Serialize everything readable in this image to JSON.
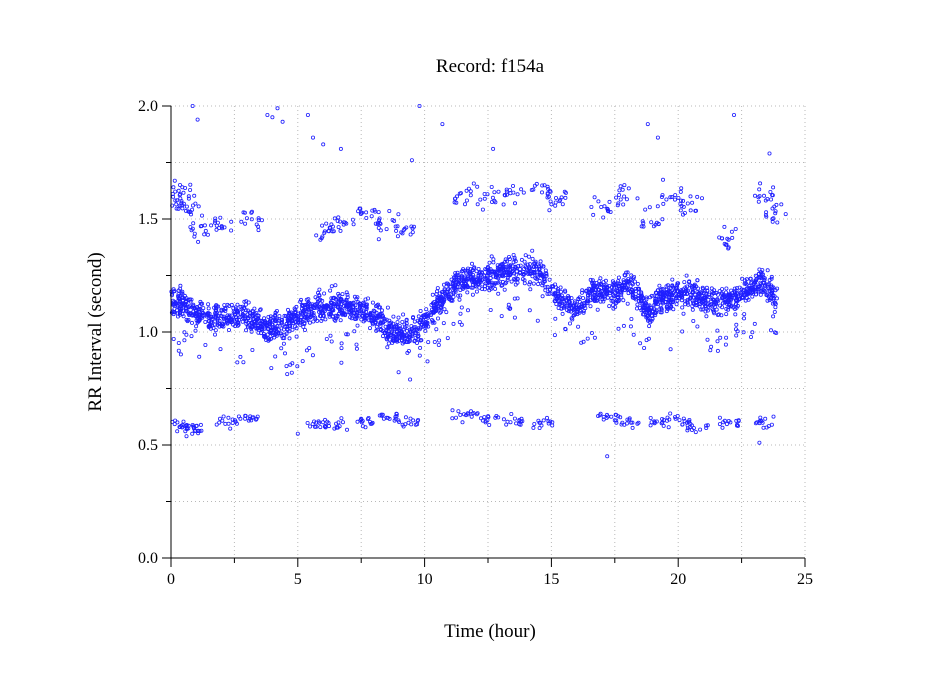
{
  "chart_data": {
    "type": "scatter",
    "title": "Record:  f154a",
    "xlabel": "Time (hour)",
    "ylabel": "RR Interval (second)",
    "xlim": [
      0,
      25
    ],
    "ylim": [
      0.0,
      2.0
    ],
    "xticks": [
      "0",
      "5",
      "10",
      "15",
      "20",
      "25"
    ],
    "yticks": [
      "0.0",
      "0.5",
      "1.0",
      "1.5",
      "2.0"
    ],
    "grid": true,
    "marker": "open-circle",
    "color": "#1f1fff",
    "series": [
      {
        "name": "",
        "baseline_trend": [
          {
            "x": 0.0,
            "y": 1.15
          },
          {
            "x": 0.5,
            "y": 1.12
          },
          {
            "x": 1.0,
            "y": 1.08
          },
          {
            "x": 2.0,
            "y": 1.07
          },
          {
            "x": 3.0,
            "y": 1.07
          },
          {
            "x": 3.8,
            "y": 1.02
          },
          {
            "x": 4.5,
            "y": 1.03
          },
          {
            "x": 5.5,
            "y": 1.1
          },
          {
            "x": 6.5,
            "y": 1.12
          },
          {
            "x": 7.5,
            "y": 1.1
          },
          {
            "x": 8.5,
            "y": 1.02
          },
          {
            "x": 9.5,
            "y": 0.98
          },
          {
            "x": 10.5,
            "y": 1.12
          },
          {
            "x": 11.3,
            "y": 1.22
          },
          {
            "x": 12.5,
            "y": 1.25
          },
          {
            "x": 13.5,
            "y": 1.27
          },
          {
            "x": 14.5,
            "y": 1.28
          },
          {
            "x": 15.0,
            "y": 1.18
          },
          {
            "x": 16.0,
            "y": 1.1
          },
          {
            "x": 16.5,
            "y": 1.17
          },
          {
            "x": 17.5,
            "y": 1.18
          },
          {
            "x": 18.0,
            "y": 1.22
          },
          {
            "x": 18.8,
            "y": 1.1
          },
          {
            "x": 19.5,
            "y": 1.15
          },
          {
            "x": 20.5,
            "y": 1.18
          },
          {
            "x": 21.5,
            "y": 1.12
          },
          {
            "x": 22.5,
            "y": 1.17
          },
          {
            "x": 23.3,
            "y": 1.22
          },
          {
            "x": 23.9,
            "y": 1.15
          }
        ],
        "upper_cluster": [
          {
            "x": 0.3,
            "y": 1.58
          },
          {
            "x": 0.5,
            "y": 1.62
          },
          {
            "x": 0.8,
            "y": 1.55
          },
          {
            "x": 1.2,
            "y": 1.45
          },
          {
            "x": 2.1,
            "y": 1.48
          },
          {
            "x": 3.2,
            "y": 1.5
          },
          {
            "x": 6.0,
            "y": 1.45
          },
          {
            "x": 6.8,
            "y": 1.48
          },
          {
            "x": 7.8,
            "y": 1.52
          },
          {
            "x": 8.5,
            "y": 1.48
          },
          {
            "x": 9.2,
            "y": 1.46
          },
          {
            "x": 11.5,
            "y": 1.6
          },
          {
            "x": 12.5,
            "y": 1.59
          },
          {
            "x": 13.5,
            "y": 1.62
          },
          {
            "x": 14.5,
            "y": 1.63
          },
          {
            "x": 15.2,
            "y": 1.58
          },
          {
            "x": 17.0,
            "y": 1.55
          },
          {
            "x": 18.0,
            "y": 1.62
          },
          {
            "x": 19.0,
            "y": 1.5
          },
          {
            "x": 19.8,
            "y": 1.6
          },
          {
            "x": 20.5,
            "y": 1.56
          },
          {
            "x": 22.0,
            "y": 1.42
          },
          {
            "x": 23.4,
            "y": 1.62
          },
          {
            "x": 23.8,
            "y": 1.52
          }
        ],
        "lower_cluster": [
          {
            "x": 0.2,
            "y": 0.59
          },
          {
            "x": 0.6,
            "y": 0.58
          },
          {
            "x": 1.0,
            "y": 0.57
          },
          {
            "x": 2.2,
            "y": 0.6
          },
          {
            "x": 3.0,
            "y": 0.62
          },
          {
            "x": 5.8,
            "y": 0.59
          },
          {
            "x": 6.5,
            "y": 0.58
          },
          {
            "x": 7.8,
            "y": 0.6
          },
          {
            "x": 8.6,
            "y": 0.62
          },
          {
            "x": 9.4,
            "y": 0.6
          },
          {
            "x": 11.5,
            "y": 0.63
          },
          {
            "x": 12.5,
            "y": 0.62
          },
          {
            "x": 13.5,
            "y": 0.61
          },
          {
            "x": 14.6,
            "y": 0.6
          },
          {
            "x": 17.2,
            "y": 0.62
          },
          {
            "x": 18.0,
            "y": 0.6
          },
          {
            "x": 19.2,
            "y": 0.6
          },
          {
            "x": 20.0,
            "y": 0.61
          },
          {
            "x": 20.8,
            "y": 0.58
          },
          {
            "x": 22.0,
            "y": 0.6
          },
          {
            "x": 23.5,
            "y": 0.6
          }
        ],
        "outliers": [
          {
            "x": 0.85,
            "y": 2.0
          },
          {
            "x": 1.05,
            "y": 1.94
          },
          {
            "x": 3.8,
            "y": 1.96
          },
          {
            "x": 4.0,
            "y": 1.95
          },
          {
            "x": 4.2,
            "y": 1.99
          },
          {
            "x": 4.4,
            "y": 1.93
          },
          {
            "x": 5.4,
            "y": 1.96
          },
          {
            "x": 5.6,
            "y": 1.86
          },
          {
            "x": 6.0,
            "y": 1.83
          },
          {
            "x": 6.7,
            "y": 1.81
          },
          {
            "x": 9.5,
            "y": 1.76
          },
          {
            "x": 9.8,
            "y": 2.0
          },
          {
            "x": 10.7,
            "y": 1.92
          },
          {
            "x": 12.7,
            "y": 1.81
          },
          {
            "x": 18.8,
            "y": 1.92
          },
          {
            "x": 19.2,
            "y": 1.86
          },
          {
            "x": 22.2,
            "y": 1.96
          },
          {
            "x": 23.6,
            "y": 1.79
          },
          {
            "x": 17.2,
            "y": 0.45
          },
          {
            "x": 5.0,
            "y": 0.55
          },
          {
            "x": 23.2,
            "y": 0.51
          }
        ],
        "baseline_min": 0.75,
        "baseline_max": 1.37
      }
    ]
  }
}
